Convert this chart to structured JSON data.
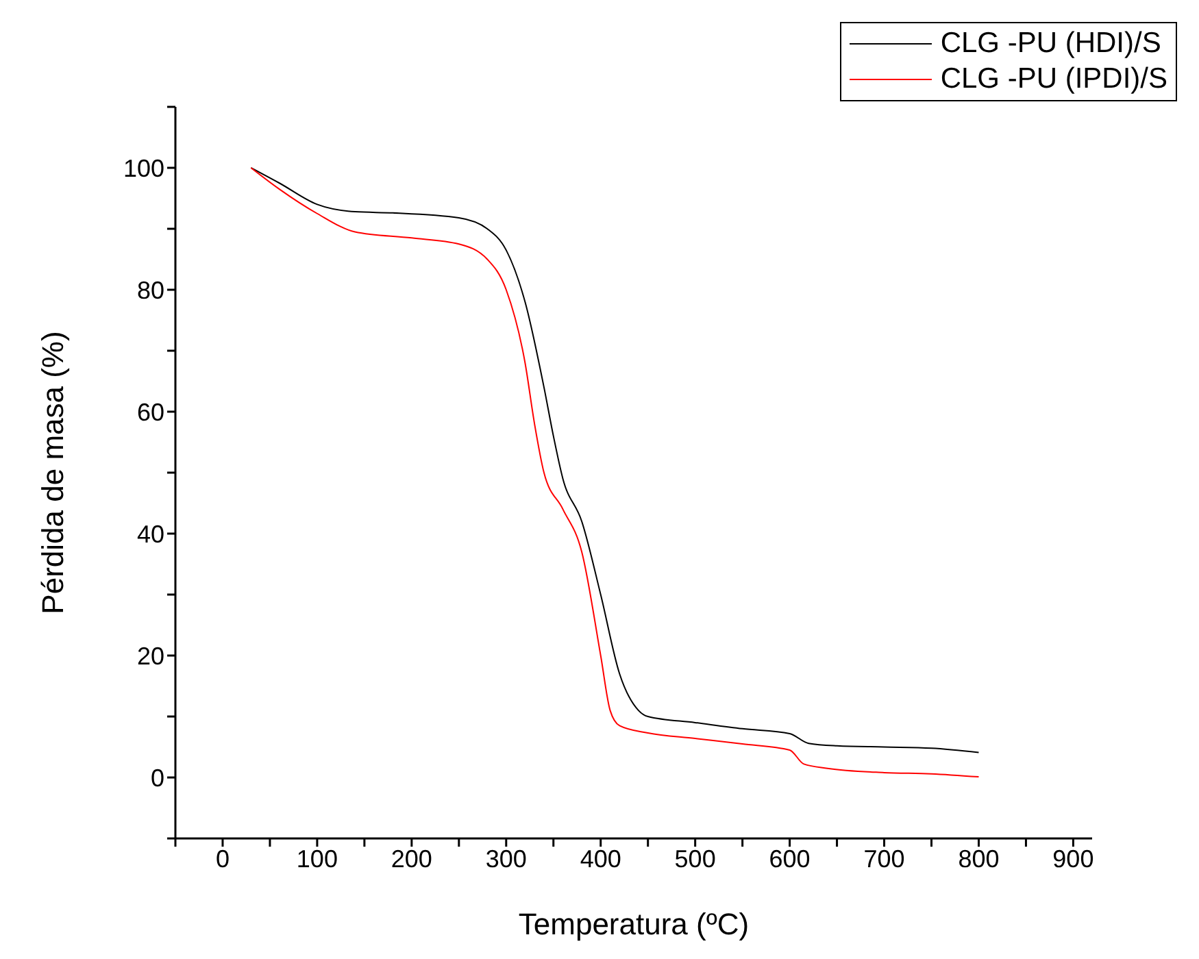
{
  "chart_data": {
    "type": "line",
    "xlabel": "Temperatura (ºC)",
    "ylabel": "Pérdida de masa (%)",
    "xlim": [
      -50,
      920
    ],
    "ylim": [
      -10,
      110
    ],
    "xticks": [
      {
        "value": -50,
        "label": null
      },
      0,
      {
        "value": 50,
        "label": null
      },
      100,
      {
        "value": 150,
        "label": null
      },
      200,
      {
        "value": 250,
        "label": null
      },
      300,
      {
        "value": 350,
        "label": null
      },
      400,
      {
        "value": 450,
        "label": null
      },
      500,
      {
        "value": 550,
        "label": null
      },
      600,
      {
        "value": 650,
        "label": null
      },
      700,
      {
        "value": 750,
        "label": null
      },
      800,
      {
        "value": 850,
        "label": null
      },
      900
    ],
    "yticks": [
      {
        "value": -10,
        "label": null
      },
      0,
      {
        "value": 10,
        "label": null
      },
      20,
      {
        "value": 30,
        "label": null
      },
      40,
      {
        "value": 50,
        "label": null
      },
      60,
      {
        "value": 70,
        "label": null
      },
      80,
      {
        "value": 90,
        "label": null
      },
      100,
      {
        "value": 110,
        "label": null
      }
    ],
    "grid": false,
    "legend": "top right",
    "marker": "none",
    "line_style": "solid",
    "series": [
      {
        "name": "CLG -PU (HDI)/S",
        "color": "#000000",
        "x": [
          30,
          60,
          100,
          140,
          180,
          250,
          280,
          300,
          320,
          340,
          350,
          360,
          380,
          400,
          420,
          440,
          450,
          500,
          550,
          600,
          620,
          650,
          700,
          750,
          800
        ],
        "values": [
          100,
          97.5,
          94,
          92.8,
          92.6,
          91.8,
          90,
          86.5,
          78,
          64,
          56,
          49,
          42,
          30,
          17,
          11,
          10,
          9,
          8,
          7.2,
          5.6,
          5.2,
          5,
          4.8,
          4.1
        ]
      },
      {
        "name": "CLG -PU (IPDI)/S",
        "color": "#ff0000",
        "x": [
          30,
          60,
          100,
          140,
          200,
          250,
          280,
          300,
          320,
          330,
          340,
          360,
          380,
          400,
          410,
          420,
          450,
          500,
          550,
          600,
          615,
          640,
          700,
          750,
          800
        ],
        "values": [
          100,
          96.5,
          92.5,
          89.5,
          88.5,
          87.5,
          85,
          80,
          68,
          58,
          50,
          44,
          37,
          20,
          11,
          8.5,
          7.3,
          6.4,
          5.5,
          4.5,
          2.2,
          1.5,
          0.8,
          0.6,
          0.1
        ]
      }
    ]
  }
}
